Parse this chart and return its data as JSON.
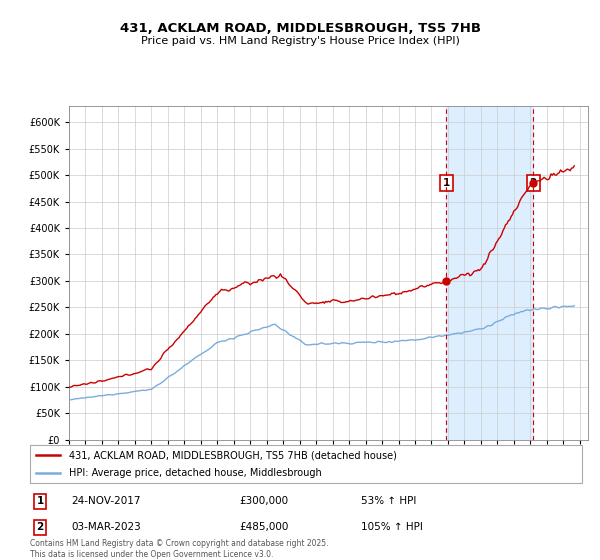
{
  "title_line1": "431, ACKLAM ROAD, MIDDLESBROUGH, TS5 7HB",
  "title_line2": "Price paid vs. HM Land Registry's House Price Index (HPI)",
  "background_color": "#ffffff",
  "chart_bg_color": "#ffffff",
  "grid_color": "#cccccc",
  "red_line_color": "#cc0000",
  "blue_line_color": "#7aaddc",
  "highlight_bg_color": "#ddeeff",
  "sale1_date_num": 2017.9,
  "sale1_price": 300000,
  "sale1_label": "1",
  "sale1_date_str": "24-NOV-2017",
  "sale1_pct": "53% ↑ HPI",
  "sale2_date_num": 2023.17,
  "sale2_price": 485000,
  "sale2_label": "2",
  "sale2_date_str": "03-MAR-2023",
  "sale2_pct": "105% ↑ HPI",
  "legend_red": "431, ACKLAM ROAD, MIDDLESBROUGH, TS5 7HB (detached house)",
  "legend_blue": "HPI: Average price, detached house, Middlesbrough",
  "footnote": "Contains HM Land Registry data © Crown copyright and database right 2025.\nThis data is licensed under the Open Government Licence v3.0.",
  "xmin": 1995.0,
  "xmax": 2026.5,
  "ymin": 0,
  "ymax": 630000,
  "yticks": [
    0,
    50000,
    100000,
    150000,
    200000,
    250000,
    300000,
    350000,
    400000,
    450000,
    500000,
    550000,
    600000
  ]
}
